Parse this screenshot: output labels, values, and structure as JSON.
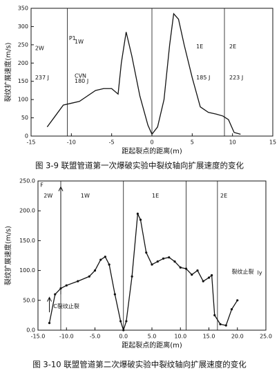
{
  "chart_data": [
    {
      "type": "line",
      "title": "图 3-9 联盟管道第一次爆破实验中裂纹轴向扩展速度的变化",
      "xlabel": "距起裂点的距离(m)",
      "ylabel": "裂纹扩展速度(m/s)",
      "x": [
        -13,
        -12,
        -11,
        -10,
        -9,
        -8,
        -7,
        -6,
        -5,
        -4.2,
        -3.8,
        -3.2,
        -2.5,
        -1.5,
        -0.5,
        0,
        0.7,
        1.5,
        2.2,
        2.7,
        3.3,
        4,
        5,
        6,
        7,
        8,
        8.8,
        9.5,
        10.2,
        11
      ],
      "values": [
        25,
        55,
        85,
        90,
        95,
        110,
        125,
        130,
        130,
        115,
        200,
        285,
        220,
        110,
        30,
        5,
        25,
        100,
        250,
        335,
        320,
        250,
        160,
        80,
        65,
        60,
        55,
        45,
        10,
        5
      ],
      "color": "#111111",
      "markers": false,
      "xlim": [
        -15,
        15
      ],
      "xticks": [
        -15,
        -10,
        -5,
        0,
        5,
        10,
        15
      ],
      "ylim": [
        0,
        350
      ],
      "yticks": [
        0,
        50,
        100,
        150,
        200,
        250,
        300,
        350
      ],
      "annotations": [
        "2W",
        "237 J",
        "P1",
        "1W",
        "CVN",
        "180 J",
        "1E",
        "185 J",
        "2E",
        "223 J"
      ]
    },
    {
      "type": "line",
      "title": "图 3-10 联盟管道第二次爆破实验中裂纹轴向扩展速度的变化",
      "xlabel": "距起裂点的距离(m)",
      "ylabel": "裂纹扩展速度(m/s)",
      "x": [
        -13,
        -12,
        -11,
        -10,
        -8,
        -6,
        -5,
        -4,
        -3.2,
        -2.5,
        -1.5,
        -0.5,
        0,
        0.5,
        1.5,
        2.5,
        3,
        4,
        5,
        6,
        7,
        8,
        9,
        10,
        11,
        12,
        13,
        14,
        15,
        15.5,
        16,
        17,
        18,
        19,
        20
      ],
      "values": [
        12,
        60,
        70,
        75,
        82,
        90,
        100,
        118,
        123,
        110,
        60,
        15,
        0,
        15,
        90,
        195,
        185,
        130,
        110,
        115,
        120,
        122,
        115,
        105,
        103,
        93,
        100,
        82,
        88,
        92,
        25,
        10,
        8,
        35,
        50
      ],
      "color": "#111111",
      "markers": true,
      "xlim": [
        -15,
        25
      ],
      "xticks": [
        {
          "value": -15,
          "label": "-15.0"
        },
        {
          "value": -10,
          "label": "-10.0"
        },
        {
          "value": -5,
          "label": "-5.0"
        },
        {
          "value": 0,
          "label": "0.0"
        },
        {
          "value": 5,
          "label": "5.0"
        },
        {
          "value": 10,
          "label": "10.0"
        },
        {
          "value": 15,
          "label": "15.0"
        },
        {
          "value": 20,
          "label": "20.0"
        },
        {
          "value": 25,
          "label": "25.0"
        }
      ],
      "ylim": [
        0,
        250
      ],
      "yticks": [
        {
          "value": 0,
          "label": "0.0"
        },
        {
          "value": 50,
          "label": "50.0"
        },
        {
          "value": 100,
          "label": "100.0"
        },
        {
          "value": 150,
          "label": "150.0"
        },
        {
          "value": 200,
          "label": "200.0"
        },
        {
          "value": 250,
          "label": "250.0"
        }
      ],
      "annotations": [
        "F",
        "2W",
        "1W",
        "1E",
        "2E",
        "裂纹止裂",
        "C裂纹止裂",
        "ly"
      ]
    }
  ]
}
